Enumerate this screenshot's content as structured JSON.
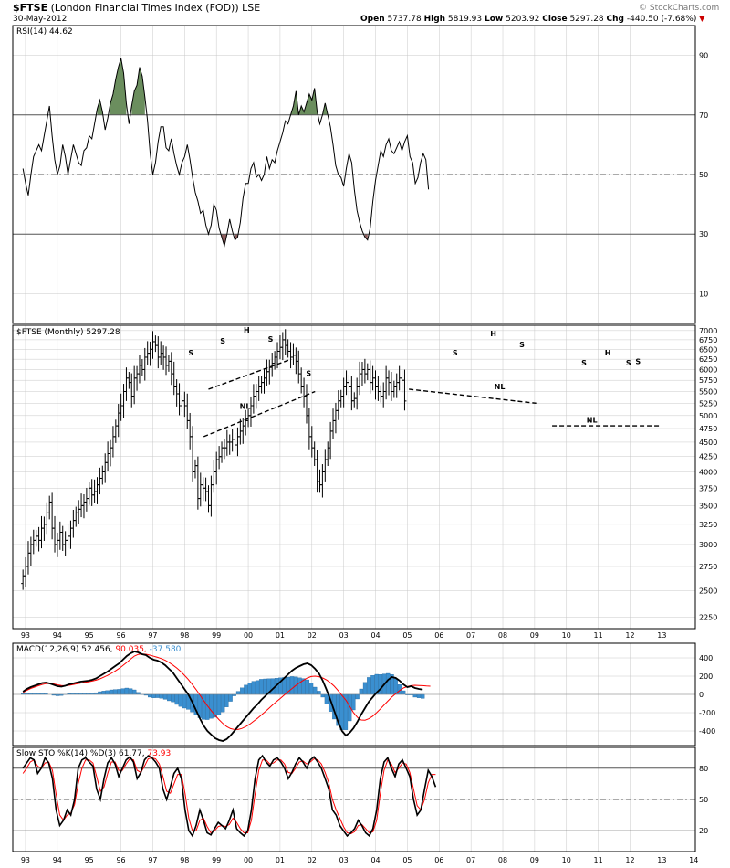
{
  "header": {
    "symbol": "$FTSE",
    "name": "(London Financial Times Index (FOD)) LSE",
    "date": "30-May-2012",
    "open_label": "Open",
    "open": "5737.78",
    "high_label": "High",
    "high": "5819.93",
    "low_label": "Low",
    "low": "5203.92",
    "close_label": "Close",
    "close": "5297.28",
    "chg_label": "Chg",
    "chg": "-440.50 (-7.68%)",
    "chg_arrow": "▼",
    "watermark": "© StockCharts.com"
  },
  "colors": {
    "ob_fill": "#6b8e5e",
    "os_fill": "#8e5e5e",
    "macd_fast": "#000000",
    "macd_signal": "#ff0000",
    "histogram": "#3a8fd0",
    "k_line": "#000000",
    "d_line": "#ff0000",
    "grid": "#c8c8c8"
  },
  "chart_data": [
    {
      "type": "line",
      "panel": "rsi",
      "legend": "RSI(14) 44.62",
      "ylim": [
        0,
        100
      ],
      "yticks": [
        10,
        30,
        50,
        70,
        90
      ],
      "levels": [
        30,
        50,
        70
      ],
      "overbought": 70,
      "oversold": 30,
      "x_start": 1992.92,
      "x_step": 0.0833,
      "values": [
        52,
        47,
        43,
        50,
        56,
        58,
        60,
        58,
        63,
        68,
        73,
        63,
        55,
        50,
        53,
        60,
        56,
        50,
        55,
        60,
        57,
        54,
        53,
        58,
        59,
        63,
        62,
        67,
        72,
        75,
        71,
        65,
        69,
        74,
        77,
        82,
        86,
        89,
        84,
        74,
        67,
        73,
        78,
        80,
        86,
        83,
        76,
        68,
        57,
        50,
        54,
        61,
        66,
        66,
        59,
        58,
        62,
        57,
        53,
        50,
        54,
        56,
        60,
        55,
        49,
        44,
        41,
        37,
        38,
        33,
        30,
        33,
        40,
        38,
        32,
        29,
        26,
        30,
        35,
        31,
        28,
        29,
        34,
        42,
        47,
        47,
        52,
        54,
        49,
        50,
        48,
        50,
        56,
        52,
        55,
        54,
        58,
        61,
        64,
        68,
        67,
        70,
        73,
        78,
        70,
        73,
        71,
        74,
        77,
        75,
        79,
        71,
        67,
        70,
        74,
        70,
        66,
        60,
        53,
        50,
        49,
        46,
        52,
        57,
        54,
        45,
        38,
        34,
        31,
        29,
        28,
        32,
        41,
        48,
        53,
        58,
        56,
        60,
        62,
        58,
        57,
        59,
        61,
        58,
        61,
        63,
        56,
        54,
        47,
        49,
        54,
        57,
        55,
        45
      ],
      "xticks": [
        "93",
        "94",
        "95",
        "96",
        "97",
        "98",
        "99",
        "00",
        "01",
        "02",
        "03",
        "04",
        "05",
        "06",
        "07",
        "08",
        "09",
        "10",
        "11",
        "12",
        "13"
      ]
    },
    {
      "type": "ohlc",
      "panel": "price",
      "legend": "$FTSE (Monthly) 5297.28",
      "yscale": "log",
      "ylim": [
        2150,
        7150
      ],
      "yticks": [
        2250,
        2500,
        2750,
        3000,
        3250,
        3500,
        3750,
        4000,
        4250,
        4500,
        4750,
        5000,
        5250,
        5500,
        5750,
        6000,
        6250,
        6500,
        6750,
        7000
      ],
      "x_start": 1992.92,
      "x_step": 0.0833,
      "closes": [
        2650,
        2750,
        2900,
        3000,
        3050,
        3100,
        3050,
        3200,
        3250,
        3400,
        3550,
        3200,
        3000,
        3050,
        3150,
        3000,
        3050,
        3100,
        3200,
        3300,
        3400,
        3450,
        3500,
        3550,
        3600,
        3750,
        3650,
        3700,
        3800,
        3900,
        4000,
        4150,
        4300,
        4400,
        4600,
        4800,
        5050,
        5200,
        5500,
        5800,
        5700,
        5400,
        5800,
        5900,
        6100,
        6000,
        6300,
        6400,
        6500,
        6700,
        6600,
        6300,
        6400,
        6300,
        6100,
        6200,
        5900,
        5600,
        5450,
        5200,
        5300,
        5200,
        4900,
        4600,
        4000,
        4100,
        3600,
        3800,
        3750,
        3700,
        3500,
        3800,
        4000,
        4200,
        4250,
        4400,
        4400,
        4500,
        4500,
        4550,
        4450,
        4600,
        4700,
        4800,
        4900,
        5000,
        5200,
        5400,
        5500,
        5600,
        5700,
        5800,
        5950,
        6050,
        6150,
        6300,
        6450,
        6550,
        6750,
        6600,
        6450,
        6300,
        6350,
        6200,
        5900,
        5600,
        5400,
        5000,
        4600,
        4400,
        4200,
        3850,
        3800,
        4000,
        4200,
        4400,
        4700,
        4900,
        5100,
        5300,
        5400,
        5600,
        5700,
        5600,
        5300,
        5350,
        5600,
        5900,
        6000,
        5900,
        6000,
        5700,
        5800,
        5600,
        5500,
        5400,
        5500,
        5800,
        5700,
        5500,
        5600,
        5700,
        5800,
        5750,
        5297
      ],
      "annotations": [
        {
          "text": "S",
          "x": 1998.2,
          "y": 6350
        },
        {
          "text": "S",
          "x": 1999.2,
          "y": 6650
        },
        {
          "text": "H",
          "x": 1999.95,
          "y": 6950
        },
        {
          "text": "S",
          "x": 2000.7,
          "y": 6700
        },
        {
          "text": "S",
          "x": 2001.9,
          "y": 5850
        },
        {
          "text": "NL",
          "x": 1999.9,
          "y": 5130
        },
        {
          "text": "S",
          "x": 2006.5,
          "y": 6350
        },
        {
          "text": "H",
          "x": 2007.7,
          "y": 6850
        },
        {
          "text": "S",
          "x": 2008.6,
          "y": 6550
        },
        {
          "text": "NL",
          "x": 2007.9,
          "y": 5550
        },
        {
          "text": "S",
          "x": 2010.55,
          "y": 6100
        },
        {
          "text": "H",
          "x": 2011.3,
          "y": 6350
        },
        {
          "text": "S",
          "x": 2012.25,
          "y": 6130
        },
        {
          "text": "S",
          "x": 2011.95,
          "y": 6100
        },
        {
          "text": "NL",
          "x": 2010.8,
          "y": 4860
        }
      ],
      "trendlines": [
        {
          "x1": 1998.75,
          "y1": 5550,
          "x2": 2001.35,
          "y2": 6250
        },
        {
          "x1": 1998.6,
          "y1": 4600,
          "x2": 2002.1,
          "y2": 5500
        },
        {
          "x1": 2005.05,
          "y1": 5550,
          "x2": 2009.05,
          "y2": 5250
        },
        {
          "x1": 2009.55,
          "y1": 4800,
          "x2": 2013.0,
          "y2": 4800
        }
      ],
      "xticks": [
        "93",
        "94",
        "95",
        "96",
        "97",
        "98",
        "99",
        "00",
        "01",
        "02",
        "03",
        "04",
        "05",
        "06",
        "07",
        "08",
        "09",
        "10",
        "11",
        "12",
        "13"
      ]
    },
    {
      "type": "line",
      "panel": "macd",
      "legend_name": "MACD(12,26,9)",
      "legend_macd": "52.456",
      "legend_signal": "90.035",
      "legend_hist": "-37.580",
      "ylim": [
        -560,
        560
      ],
      "yticks": [
        400,
        200,
        0,
        -200,
        -400
      ],
      "x_start": 1992.92,
      "x_step": 0.0833,
      "series": [
        {
          "values": [
            30,
            60,
            80,
            95,
            110,
            125,
            130,
            120,
            105,
            90,
            85,
            95,
            110,
            120,
            130,
            140,
            145,
            150,
            160,
            175,
            200,
            225,
            250,
            280,
            310,
            340,
            380,
            420,
            450,
            470,
            460,
            440,
            430,
            400,
            380,
            370,
            350,
            320,
            280,
            240,
            180,
            120,
            60,
            0,
            -80,
            -170,
            -260,
            -340,
            -400,
            -440,
            -480,
            -500,
            -510,
            -490,
            -450,
            -400,
            -350,
            -300,
            -250,
            -200,
            -150,
            -110,
            -60,
            -20,
            20,
            60,
            100,
            140,
            180,
            220,
            260,
            290,
            310,
            330,
            340,
            320,
            280,
            230,
            150,
            50,
            -60,
            -180,
            -300,
            -400,
            -450,
            -420,
            -370,
            -300,
            -220,
            -150,
            -80,
            -30,
            20,
            60,
            110,
            160,
            190,
            180,
            150,
            110,
            80,
            90,
            70,
            60,
            52
          ]
        },
        {
          "values": [
            20,
            45,
            65,
            80,
            95,
            108,
            118,
            120,
            115,
            105,
            97,
            96,
            100,
            108,
            116,
            124,
            132,
            138,
            146,
            156,
            170,
            188,
            208,
            230,
            256,
            284,
            316,
            350,
            386,
            420,
            438,
            442,
            440,
            430,
            418,
            406,
            392,
            374,
            350,
            322,
            290,
            252,
            210,
            164,
            112,
            56,
            -4,
            -66,
            -124,
            -178,
            -230,
            -276,
            -318,
            -352,
            -374,
            -384,
            -384,
            -372,
            -352,
            -326,
            -294,
            -262,
            -226,
            -190,
            -152,
            -114,
            -78,
            -42,
            -6,
            30,
            64,
            98,
            128,
            156,
            180,
            196,
            200,
            194,
            180,
            158,
            128,
            90,
            42,
            -12,
            -62,
            -130,
            -200,
            -250,
            -280,
            -282,
            -266,
            -238,
            -200,
            -158,
            -114,
            -70,
            -28,
            8,
            42,
            70,
            86,
            96,
            100,
            98,
            96,
            92,
            90
          ]
        }
      ],
      "xticks": [
        "93",
        "94",
        "95",
        "96",
        "97",
        "98",
        "99",
        "00",
        "01",
        "02",
        "03",
        "04",
        "05",
        "06",
        "07",
        "08",
        "09",
        "10",
        "11",
        "12",
        "13"
      ]
    },
    {
      "type": "line",
      "panel": "stochastic",
      "legend_name": "Slow STO %K(14) %D(3)",
      "legend_k": "61.77",
      "legend_d": "73.93",
      "ylim": [
        0,
        100
      ],
      "yticks": [
        20,
        50,
        80
      ],
      "levels": [
        20,
        50,
        80
      ],
      "x_start": 1992.92,
      "x_step": 0.0833,
      "series": [
        {
          "values": [
            80,
            85,
            90,
            88,
            75,
            80,
            90,
            85,
            70,
            40,
            25,
            30,
            40,
            35,
            50,
            80,
            88,
            90,
            86,
            82,
            60,
            50,
            70,
            85,
            90,
            84,
            72,
            80,
            88,
            91,
            86,
            70,
            76,
            88,
            92,
            90,
            86,
            80,
            60,
            50,
            62,
            75,
            80,
            70,
            40,
            20,
            15,
            25,
            40,
            30,
            18,
            16,
            22,
            28,
            25,
            22,
            30,
            40,
            22,
            18,
            15,
            20,
            40,
            70,
            88,
            92,
            86,
            82,
            88,
            90,
            86,
            80,
            70,
            76,
            84,
            90,
            86,
            80,
            88,
            91,
            86,
            80,
            70,
            60,
            40,
            35,
            25,
            20,
            15,
            18,
            22,
            30,
            25,
            18,
            15,
            22,
            40,
            70,
            86,
            90,
            80,
            72,
            84,
            88,
            80,
            72,
            50,
            35,
            40,
            60,
            78,
            72,
            62
          ]
        },
        {
          "values": [
            75,
            80,
            86,
            88,
            82,
            80,
            85,
            86,
            78,
            55,
            35,
            30,
            35,
            37,
            45,
            65,
            80,
            88,
            88,
            85,
            72,
            58,
            62,
            75,
            86,
            86,
            78,
            78,
            84,
            89,
            88,
            78,
            76,
            82,
            89,
            90,
            89,
            84,
            72,
            58,
            56,
            65,
            74,
            74,
            56,
            32,
            20,
            20,
            30,
            32,
            24,
            18,
            20,
            24,
            25,
            24,
            26,
            32,
            28,
            22,
            18,
            18,
            30,
            55,
            78,
            88,
            88,
            84,
            85,
            88,
            88,
            84,
            76,
            75,
            80,
            86,
            87,
            84,
            86,
            89,
            88,
            84,
            76,
            66,
            50,
            40,
            32,
            24,
            18,
            17,
            19,
            25,
            26,
            22,
            18,
            19,
            30,
            56,
            78,
            88,
            84,
            76,
            80,
            85,
            84,
            76,
            60,
            44,
            40,
            50,
            66,
            74,
            74
          ]
        }
      ],
      "xticks": [
        "93",
        "94",
        "95",
        "96",
        "97",
        "98",
        "99",
        "00",
        "01",
        "02",
        "03",
        "04",
        "05",
        "06",
        "07",
        "08",
        "09",
        "10",
        "11",
        "12",
        "13",
        "14"
      ]
    }
  ]
}
